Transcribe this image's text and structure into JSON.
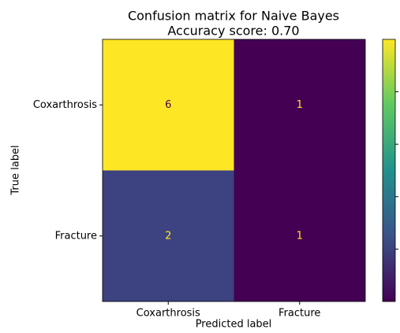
{
  "chart_data": {
    "type": "heatmap",
    "title": "Confusion matrix for Naive Bayes",
    "subtitle": "Accuracy score: 0.70",
    "x_label": "Predicted label",
    "y_label": "True label",
    "x_categories": [
      "Coxarthrosis",
      "Fracture"
    ],
    "y_categories": [
      "Coxarthrosis",
      "Fracture"
    ],
    "values": [
      [
        6,
        1
      ],
      [
        2,
        1
      ]
    ],
    "colormap": "viridis",
    "colorbar": {
      "clim": [
        1,
        6
      ],
      "ticks": [
        2,
        3,
        4,
        5
      ]
    }
  }
}
